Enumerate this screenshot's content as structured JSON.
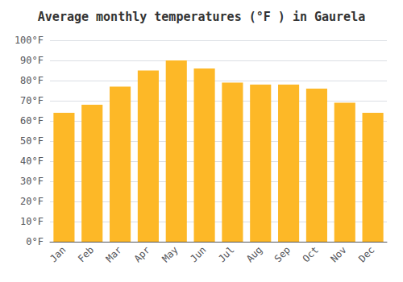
{
  "chart_data": {
    "type": "bar",
    "title": "Average monthly temperatures (°F ) in Gaurela",
    "categories": [
      "Jan",
      "Feb",
      "Mar",
      "Apr",
      "May",
      "Jun",
      "Jul",
      "Aug",
      "Sep",
      "Oct",
      "Nov",
      "Dec"
    ],
    "values": [
      64,
      68,
      77,
      85,
      90,
      86,
      79,
      78,
      78,
      76,
      69,
      64
    ],
    "color": "#FDB827",
    "ylim": [
      0,
      100
    ],
    "yticks": [
      {
        "value": 0,
        "label": "0°F"
      },
      {
        "value": 10,
        "label": "10°F"
      },
      {
        "value": 20,
        "label": "20°F"
      },
      {
        "value": 30,
        "label": "30°F"
      },
      {
        "value": 40,
        "label": "40°F"
      },
      {
        "value": 50,
        "label": "50°F"
      },
      {
        "value": 60,
        "label": "60°F"
      },
      {
        "value": 70,
        "label": "70°F"
      },
      {
        "value": 80,
        "label": "80°F"
      },
      {
        "value": 90,
        "label": "90°F"
      },
      {
        "value": 100,
        "label": "100°F"
      }
    ],
    "grid": true
  }
}
